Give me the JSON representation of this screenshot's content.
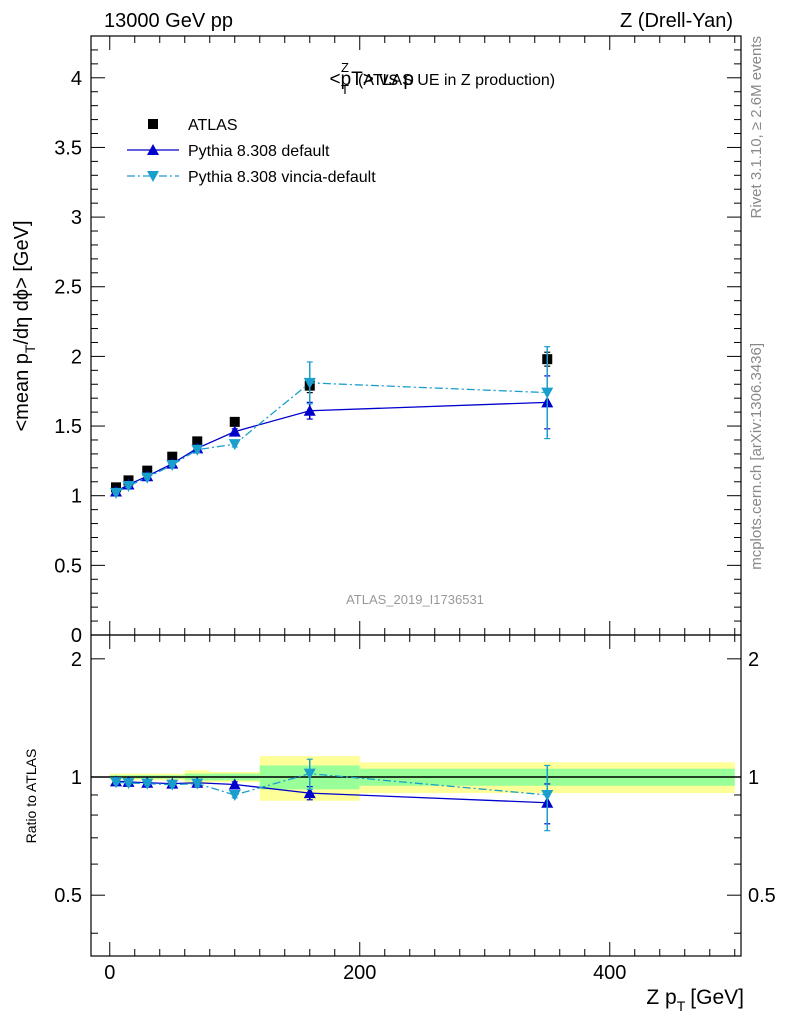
{
  "header": {
    "left": "13000 GeV pp",
    "right": "Z (Drell-Yan)"
  },
  "side_labels": {
    "rivet": "Rivet 3.1.10, ≥ 2.6M events",
    "mcplots": "mcplots.cern.ch [arXiv:1306.3436]"
  },
  "analysis_id": "ATLAS_2019_I1736531",
  "colors": {
    "data": "#000000",
    "pythia_default": "#0000cc",
    "pythia_vincia": "#1a9fcc",
    "band_yellow": "#ffff99",
    "band_green": "#99ff99"
  },
  "chart_data": [
    {
      "type": "scatter",
      "panel": "main",
      "title_main": "<pT> vs p",
      "title_sup": "Z",
      "title_sub": "T",
      "title_suffix": "(ATLAS UE in Z production)",
      "ylabel": "<mean p",
      "ylabel_sub": "T",
      "ylabel_suffix": "/dη dϕ> [GeV]",
      "xlim": [
        -15,
        505
      ],
      "ylim": [
        0,
        4.3
      ],
      "yticks": [
        "0",
        "0.5",
        "1",
        "1.5",
        "2",
        "2.5",
        "3",
        "3.5",
        "4"
      ],
      "legend_position": "top-left",
      "x": [
        5,
        15,
        30,
        50,
        70,
        100,
        160,
        350
      ],
      "series": [
        {
          "name": "ATLAS",
          "marker": "square",
          "values": [
            1.06,
            1.11,
            1.18,
            1.28,
            1.39,
            1.53,
            1.79,
            1.98
          ],
          "err": [
            0.01,
            0.01,
            0.01,
            0.01,
            0.02,
            0.02,
            0.05,
            0.05
          ]
        },
        {
          "name": "Pythia 8.308 default",
          "marker": "triangle-up",
          "line": "solid",
          "values": [
            1.03,
            1.08,
            1.14,
            1.23,
            1.34,
            1.46,
            1.61,
            1.67
          ],
          "err": [
            0.01,
            0.01,
            0.01,
            0.01,
            0.02,
            0.02,
            0.06,
            0.19
          ]
        },
        {
          "name": "Pythia 8.308 vincia-default",
          "marker": "triangle-down",
          "line": "dashdot",
          "values": [
            1.02,
            1.07,
            1.13,
            1.22,
            1.33,
            1.37,
            1.81,
            1.74
          ],
          "err": [
            0.01,
            0.01,
            0.01,
            0.01,
            0.02,
            0.02,
            0.15,
            0.33
          ]
        }
      ]
    },
    {
      "type": "scatter",
      "panel": "ratio",
      "xlabel": "Z p",
      "xlabel_sub": "T",
      "xlabel_suffix": "[GeV]",
      "ylabel": "Ratio to ATLAS",
      "xlim": [
        -15,
        505
      ],
      "ylim": [
        0.35,
        2.3
      ],
      "yticks": [
        "0.5",
        "1",
        "2"
      ],
      "xticks": [
        "0",
        "200",
        "400"
      ],
      "bins": [
        [
          0,
          10
        ],
        [
          10,
          20
        ],
        [
          20,
          40
        ],
        [
          40,
          60
        ],
        [
          60,
          80
        ],
        [
          80,
          120
        ],
        [
          120,
          200
        ],
        [
          200,
          500
        ]
      ],
      "band_outer": [
        0.02,
        0.02,
        0.02,
        0.02,
        0.04,
        0.03,
        0.13,
        0.09
      ],
      "band_inner": [
        0.01,
        0.01,
        0.01,
        0.01,
        0.02,
        0.02,
        0.07,
        0.05
      ],
      "x": [
        5,
        15,
        30,
        50,
        70,
        100,
        160,
        350
      ],
      "series": [
        {
          "name": "Pythia 8.308 default",
          "marker": "triangle-up",
          "line": "solid",
          "values": [
            0.975,
            0.972,
            0.967,
            0.962,
            0.967,
            0.957,
            0.91,
            0.86
          ],
          "err": [
            0.01,
            0.01,
            0.01,
            0.01,
            0.015,
            0.015,
            0.035,
            0.1
          ]
        },
        {
          "name": "Pythia 8.308 vincia-default",
          "marker": "triangle-down",
          "line": "dashdot",
          "values": [
            0.97,
            0.965,
            0.962,
            0.956,
            0.962,
            0.9,
            1.02,
            0.9
          ],
          "err": [
            0.01,
            0.01,
            0.01,
            0.01,
            0.015,
            0.015,
            0.09,
            0.17
          ]
        }
      ]
    }
  ]
}
